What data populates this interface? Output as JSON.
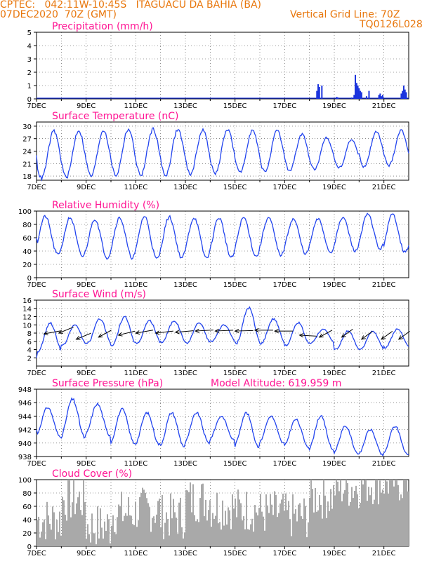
{
  "header": {
    "line1": "CPTEC:   042:11W-10:45S   ITAGUACU DA BAHIA (BA)",
    "line2": "07DEC2020  70Z (GMT)",
    "grid_note": "Vertical Grid Line: 70Z",
    "code": "TQ0126L028"
  },
  "colors": {
    "line": "#2244ee",
    "bar": "#1a33dd",
    "cloud": "#a9a9a9",
    "title": "#ff1493",
    "header": "#e8760b",
    "wind": "#000000"
  },
  "chart_data": [
    {
      "type": "bar",
      "title": "Precipitation (mm/h)",
      "ylim": [
        0,
        5
      ],
      "yticks": [
        "0",
        "1",
        "2",
        "3",
        "4",
        "5"
      ],
      "xticks": [
        "7DEC",
        "9DEC",
        "11DEC",
        "13DEC",
        "15DEC",
        "17DEC",
        "19DEC",
        "21DEC"
      ],
      "grid": true,
      "x_day": [
        11.3,
        11.35,
        11.4,
        11.5,
        12.1,
        12.15,
        12.7,
        12.8,
        12.85,
        12.9,
        12.95,
        13.0,
        13.05,
        13.1,
        13.3,
        13.4,
        13.8,
        13.85,
        13.9,
        13.95,
        14.7,
        14.75,
        14.8,
        14.85,
        14.9
      ],
      "values": [
        0.6,
        1.1,
        0.9,
        1.0,
        0.15,
        0.1,
        0.1,
        0.3,
        1.8,
        1.2,
        1.0,
        0.8,
        0.6,
        0.5,
        0.2,
        0.6,
        0.3,
        0.4,
        0.2,
        0.3,
        0.4,
        0.6,
        1.0,
        0.7,
        0.5
      ]
    },
    {
      "type": "line",
      "title": "Surface Temperature (nC)",
      "ylim": [
        17,
        31
      ],
      "yticks": [
        "18",
        "21",
        "24",
        "27",
        "30"
      ],
      "xticks": [
        "7DEC",
        "9DEC",
        "11DEC",
        "13DEC",
        "15DEC",
        "17DEC",
        "19DEC",
        "21DEC"
      ],
      "grid": true,
      "day_min": [
        17.5,
        17.7,
        18.0,
        18.2,
        18.2,
        18.2,
        18.5,
        18.6,
        18.8,
        19.0,
        19.3,
        19.6,
        20.0,
        20.3,
        20.5
      ],
      "day_max": [
        28.8,
        29.0,
        29.1,
        29.3,
        29.3,
        29.2,
        29.1,
        29.3,
        29.0,
        28.8,
        28.0,
        27.2,
        26.8,
        28.6,
        29.0
      ],
      "start_value": 23.0
    },
    {
      "type": "line",
      "title": "Relative Humidity (%)",
      "ylim": [
        0,
        100
      ],
      "yticks": [
        "0",
        "20",
        "40",
        "60",
        "80",
        "100"
      ],
      "xticks": [
        "7DEC",
        "9DEC",
        "11DEC",
        "13DEC",
        "15DEC",
        "17DEC",
        "19DEC",
        "21DEC"
      ],
      "grid": true,
      "day_min": [
        35,
        32,
        30,
        30,
        28,
        30,
        30,
        30,
        32,
        34,
        36,
        38,
        40,
        43,
        38
      ],
      "day_max": [
        92,
        90,
        88,
        90,
        92,
        91,
        90,
        90,
        90,
        90,
        88,
        88,
        90,
        95,
        95
      ],
      "start_value": 60
    },
    {
      "type": "line",
      "title": "Surface Wind (m/s)",
      "ylim": [
        0,
        16
      ],
      "yticks": [
        "2",
        "4",
        "6",
        "8",
        "10",
        "12",
        "14",
        "16"
      ],
      "xticks": [
        "7DEC",
        "9DEC",
        "11DEC",
        "13DEC",
        "15DEC",
        "17DEC",
        "19DEC",
        "21DEC"
      ],
      "grid": true,
      "day_min": [
        3.5,
        5.0,
        5.5,
        5.0,
        5.5,
        5.8,
        5.5,
        6.0,
        5.5,
        5.5,
        5.0,
        5.5,
        4.0,
        4.0,
        4.5
      ],
      "day_max": [
        10.5,
        10.0,
        11.5,
        12.0,
        11.0,
        11.0,
        10.5,
        10.0,
        14.2,
        11.5,
        10.5,
        9.0,
        8.5,
        8.5,
        9.0
      ],
      "start_value": 2.0,
      "arrows": [
        {
          "day": 0.3,
          "speed": 7.8,
          "dx": 0.9,
          "dy": 0.3
        },
        {
          "day": 0.9,
          "speed": 8.0,
          "dx": 0.8,
          "dy": 0.6
        },
        {
          "day": 1.6,
          "speed": 6.5,
          "dx": 0.8,
          "dy": 0.6
        },
        {
          "day": 2.5,
          "speed": 7.0,
          "dx": 0.7,
          "dy": 0.7
        },
        {
          "day": 3.3,
          "speed": 7.5,
          "dx": 0.9,
          "dy": 0.4
        },
        {
          "day": 4.0,
          "speed": 8.0,
          "dx": 0.95,
          "dy": 0.3
        },
        {
          "day": 4.8,
          "speed": 8.0,
          "dx": 0.97,
          "dy": 0.2
        },
        {
          "day": 5.6,
          "speed": 8.2,
          "dx": 0.98,
          "dy": 0.15
        },
        {
          "day": 6.4,
          "speed": 8.5,
          "dx": 0.99,
          "dy": 0.1
        },
        {
          "day": 7.2,
          "speed": 8.5,
          "dx": 0.99,
          "dy": 0.08
        },
        {
          "day": 8.0,
          "speed": 8.5,
          "dx": 1.0,
          "dy": 0.05
        },
        {
          "day": 8.8,
          "speed": 8.7,
          "dx": 1.0,
          "dy": 0.0
        },
        {
          "day": 9.6,
          "speed": 8.5,
          "dx": 1.0,
          "dy": 0.0
        },
        {
          "day": 10.6,
          "speed": 7.5,
          "dx": 0.95,
          "dy": -0.1
        },
        {
          "day": 11.4,
          "speed": 7.0,
          "dx": 0.7,
          "dy": 0.7
        },
        {
          "day": 12.3,
          "speed": 7.0,
          "dx": 0.6,
          "dy": 0.8
        },
        {
          "day": 13.1,
          "speed": 6.5,
          "dx": 0.6,
          "dy": 0.8
        },
        {
          "day": 13.9,
          "speed": 6.5,
          "dx": 0.6,
          "dy": 0.8
        },
        {
          "day": 14.6,
          "speed": 6.5,
          "dx": 0.6,
          "dy": 0.8
        }
      ]
    },
    {
      "type": "line",
      "title": "Surface Pressure (hPa)",
      "subtitle": "Model Altitude: 619.959  m",
      "ylim": [
        938,
        948
      ],
      "yticks": [
        "938",
        "940",
        "942",
        "944",
        "946",
        "948"
      ],
      "xticks": [
        "7DEC",
        "9DEC",
        "11DEC",
        "13DEC",
        "15DEC",
        "17DEC",
        "19DEC",
        "21DEC"
      ],
      "grid": true,
      "day_min": [
        941.0,
        940.8,
        941.2,
        940.0,
        939.8,
        939.5,
        940.0,
        940.5,
        939.5,
        940.0,
        939.5,
        939.0,
        938.5,
        938.2,
        938.3
      ],
      "day_max": [
        945.3,
        946.5,
        945.8,
        945.0,
        944.5,
        944.5,
        944.5,
        944.0,
        944.5,
        944.0,
        943.5,
        944.0,
        942.5,
        942.0,
        942.5
      ],
      "start_value": 942.0
    },
    {
      "type": "bar",
      "title": "Cloud Cover (%)",
      "ylim": [
        0,
        100
      ],
      "yticks": [
        "0",
        "20",
        "40",
        "60",
        "80",
        "100"
      ],
      "xticks": [
        "7DEC",
        "9DEC",
        "11DEC",
        "13DEC",
        "15DEC",
        "17DEC",
        "19DEC",
        "21DEC"
      ],
      "grid": true,
      "day_mean": [
        40,
        70,
        30,
        50,
        55,
        45,
        70,
        60,
        55,
        50,
        45,
        75,
        90,
        96,
        98
      ]
    }
  ]
}
